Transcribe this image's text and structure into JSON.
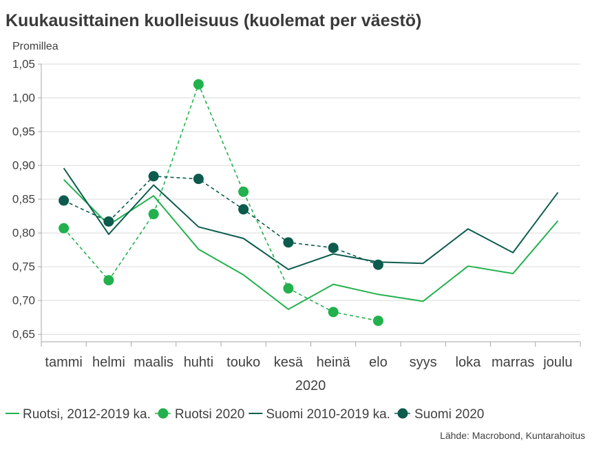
{
  "chart_data": {
    "type": "line",
    "title": "Kuukausittainen kuolleisuus (kuolemat per väestö)",
    "ylabel": "Promillea",
    "xlabel": "2020",
    "categories": [
      "tammi",
      "helmi",
      "maalis",
      "huhti",
      "touko",
      "kesä",
      "heinä",
      "elo",
      "syys",
      "loka",
      "marras",
      "joulu"
    ],
    "yticks": [
      "1,05",
      "1,00",
      "0,95",
      "0,90",
      "0,85",
      "0,80",
      "0,75",
      "0,70",
      "0,65"
    ],
    "ylim": [
      0.64,
      1.05
    ],
    "grid": true,
    "legend_position": "bottom",
    "series": [
      {
        "name": "Ruotsi, 2012-2019 ka.",
        "color": "#22B14C",
        "style": "solid",
        "values": [
          0.879,
          0.812,
          0.855,
          0.776,
          0.738,
          0.687,
          0.724,
          0.709,
          0.699,
          0.751,
          0.74,
          0.818
        ]
      },
      {
        "name": "Ruotsi 2020",
        "color": "#22B14C",
        "style": "dashed-markers",
        "values": [
          0.807,
          0.73,
          0.828,
          1.02,
          0.861,
          0.718,
          0.683,
          0.67,
          null,
          null,
          null,
          null
        ]
      },
      {
        "name": "Suomi 2010-2019 ka.",
        "color": "#0C5B4C",
        "style": "solid",
        "values": [
          0.896,
          0.798,
          0.871,
          0.809,
          0.792,
          0.746,
          0.769,
          0.757,
          0.755,
          0.806,
          0.771,
          0.86
        ]
      },
      {
        "name": "Suomi 2020",
        "color": "#0C5B4C",
        "style": "dashed-markers",
        "values": [
          0.848,
          0.817,
          0.884,
          0.88,
          0.835,
          0.786,
          0.778,
          0.753,
          null,
          null,
          null,
          null
        ]
      }
    ]
  },
  "source": "Lähde: Macrobond, Kuntarahoitus",
  "colors": {
    "gridline": "#D9D9D9",
    "axis": "#A6A6A6",
    "text": "#404040"
  }
}
